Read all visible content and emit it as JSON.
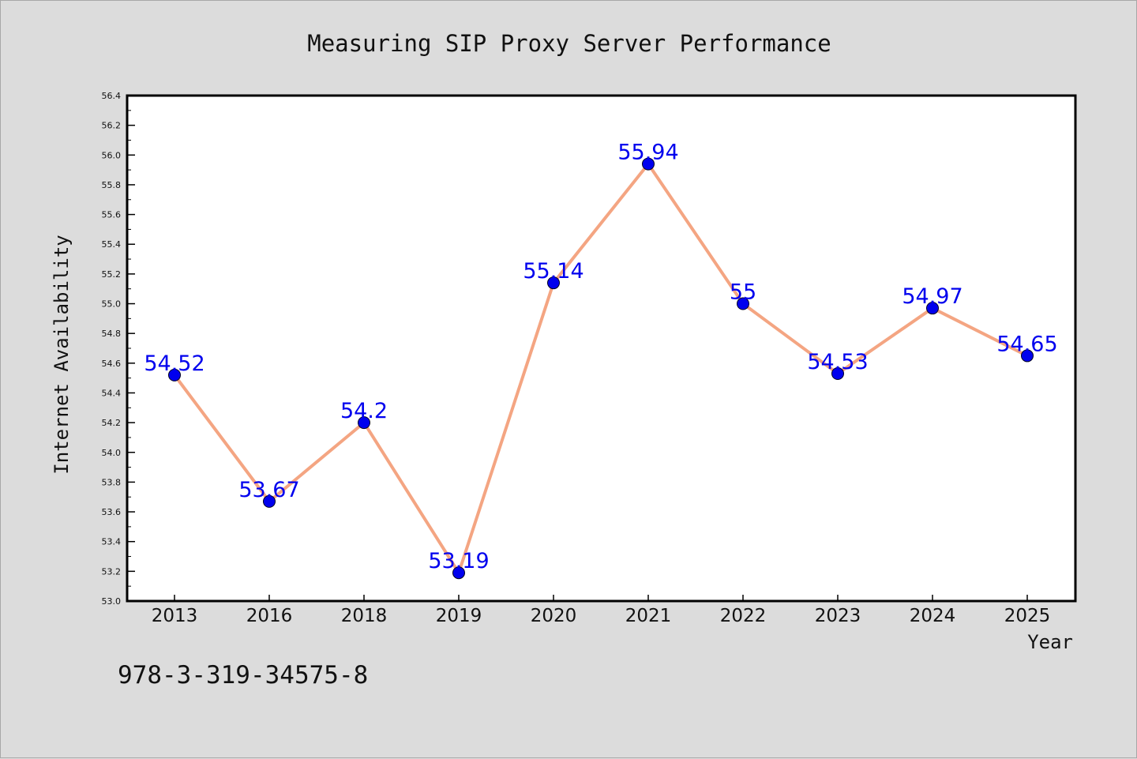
{
  "chart_data": {
    "type": "line",
    "title": "Measuring SIP Proxy Server Performance",
    "xlabel": "Year",
    "ylabel": "Internet Availability",
    "categories": [
      "2013",
      "2016",
      "2018",
      "2019",
      "2020",
      "2021",
      "2022",
      "2023",
      "2024",
      "2025"
    ],
    "series": [
      {
        "values": [
          54.52,
          53.67,
          54.2,
          53.19,
          55.14,
          55.94,
          55.0,
          54.53,
          54.97,
          54.65
        ],
        "data_labels": [
          "54.52",
          "53.67",
          "54.2",
          "53.19",
          "55.14",
          "55.94",
          "55",
          "54.53",
          "54.97",
          "54.65"
        ],
        "line_color": "#f4a582",
        "marker_color": "#0000ee"
      }
    ],
    "ylim": [
      53.0,
      56.4
    ],
    "yticks": [
      "53.0",
      "53.2",
      "53.4",
      "53.6",
      "53.8",
      "54.0",
      "54.2",
      "54.4",
      "54.6",
      "54.8",
      "55.0",
      "55.2",
      "55.4",
      "55.6",
      "55.8",
      "56.0",
      "56.2",
      "56.4"
    ],
    "grid": false,
    "legend": "none",
    "background": "#dcdcdc",
    "plot_background": "#ffffff"
  },
  "annotation": "978-3-319-34575-8"
}
